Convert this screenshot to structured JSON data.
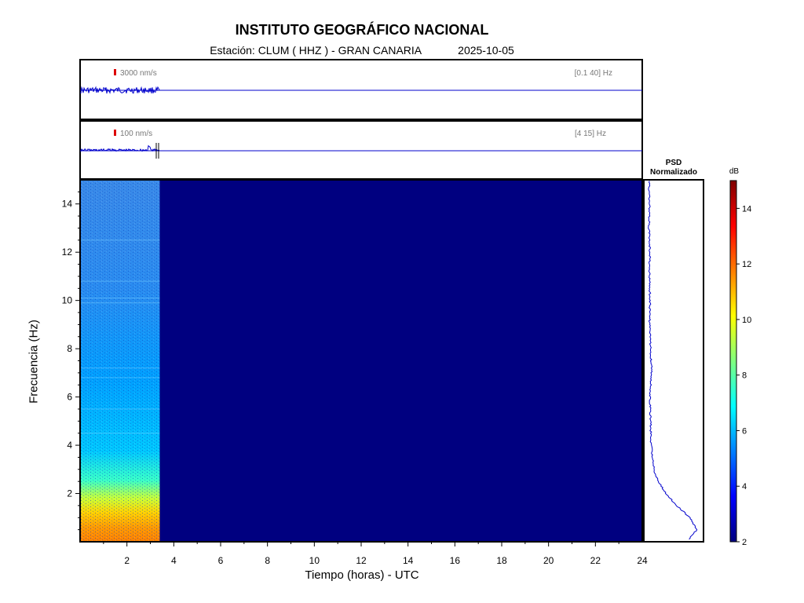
{
  "header": {
    "title": "INSTITUTO GEOGRÁFICO NACIONAL",
    "station": "Estación:  CLUM ( HHZ ) - GRAN CANARIA",
    "date": "2025-10-05"
  },
  "chart_data": {
    "type": "heatmap",
    "title": "INSTITUTO GEOGRÁFICO NACIONAL",
    "xlabel": "Tiempo (horas) - UTC",
    "ylabel": "Frecuencia  (Hz)",
    "xlim": [
      0,
      24
    ],
    "ylim": [
      0,
      15
    ],
    "xticks": [
      2,
      4,
      6,
      8,
      10,
      12,
      14,
      16,
      18,
      20,
      22,
      24
    ],
    "yticks": [
      2,
      4,
      6,
      8,
      10,
      12,
      14
    ],
    "data_end_hour": 3.4,
    "traces": [
      {
        "scale_label": "3000 nm/s",
        "band_label": "[0.1 40] Hz"
      },
      {
        "scale_label": "100 nm/s",
        "band_label": "[4 15] Hz"
      }
    ],
    "psd": {
      "title_line1": "PSD",
      "title_line2": "Normalizado",
      "curve": [
        {
          "freq": 0.1,
          "level": 0.78
        },
        {
          "freq": 0.5,
          "level": 0.92
        },
        {
          "freq": 1.0,
          "level": 0.8
        },
        {
          "freq": 1.5,
          "level": 0.55
        },
        {
          "freq": 2.0,
          "level": 0.36
        },
        {
          "freq": 2.5,
          "level": 0.22
        },
        {
          "freq": 3.0,
          "level": 0.14
        },
        {
          "freq": 4.0,
          "level": 0.09
        },
        {
          "freq": 5.0,
          "level": 0.08
        },
        {
          "freq": 6.0,
          "level": 0.07
        },
        {
          "freq": 7.0,
          "level": 0.1
        },
        {
          "freq": 8.0,
          "level": 0.08
        },
        {
          "freq": 9.0,
          "level": 0.06
        },
        {
          "freq": 10.0,
          "level": 0.07
        },
        {
          "freq": 11.0,
          "level": 0.06
        },
        {
          "freq": 12.0,
          "level": 0.07
        },
        {
          "freq": 13.0,
          "level": 0.05
        },
        {
          "freq": 14.0,
          "level": 0.06
        },
        {
          "freq": 15.0,
          "level": 0.05
        }
      ]
    },
    "colorbar": {
      "unit": "dB",
      "min": 2,
      "max": 15,
      "ticks": [
        2,
        4,
        6,
        8,
        10,
        12,
        14
      ],
      "colormap": [
        "#00007f",
        "#0000ff",
        "#007fff",
        "#00ffff",
        "#7fff7f",
        "#ffff00",
        "#ff7f00",
        "#ff0000",
        "#7f0000"
      ]
    },
    "colors": {
      "trace": "#0000cc",
      "background_fill": "#000080",
      "scale_marker": "#dd0000"
    }
  }
}
